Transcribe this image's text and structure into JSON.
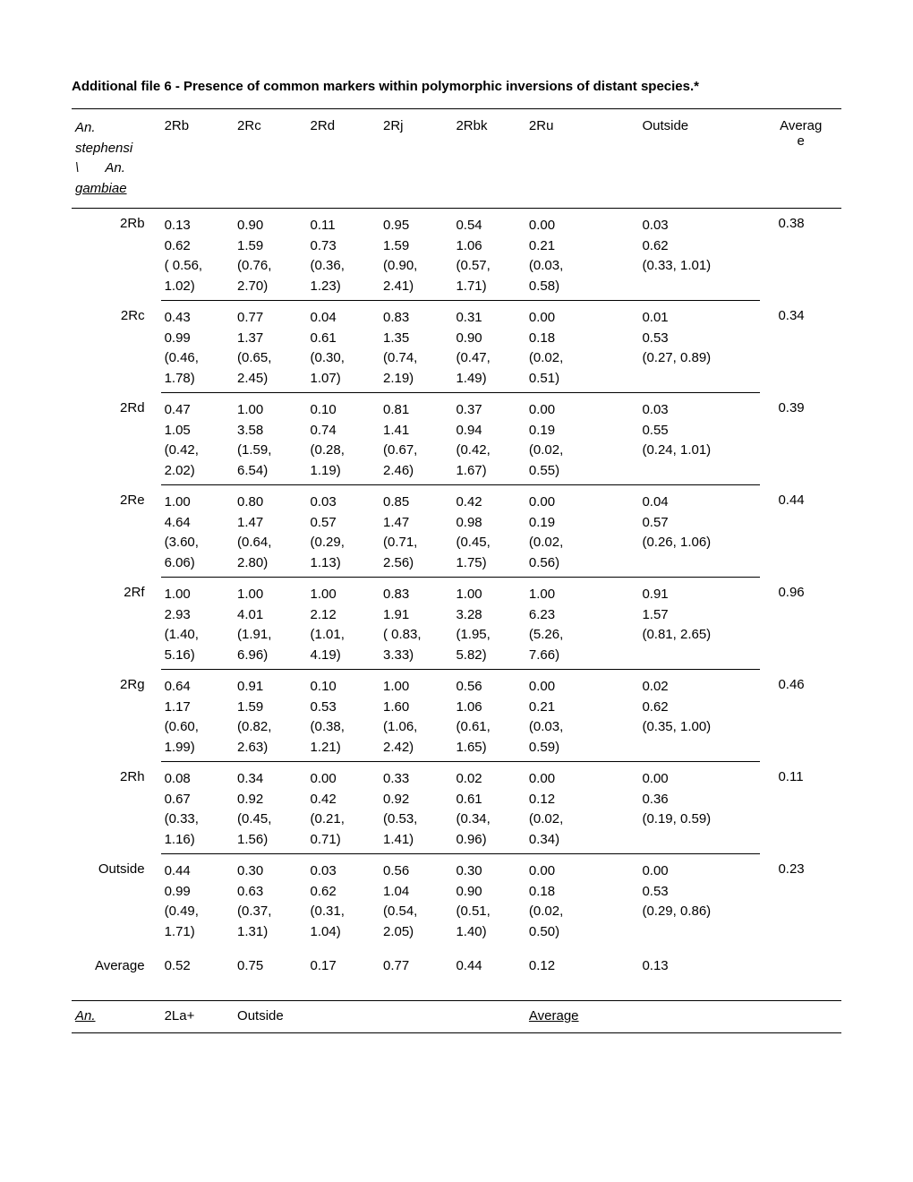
{
  "title": "Additional file 6 - Presence of common markers within polymorphic inversions of distant species.*",
  "header": {
    "rowLabel": "An. stephensi \\        An. gambiae",
    "cols": [
      "2Rb",
      "2Rc",
      "2Rd",
      "2Rj",
      "2Rbk",
      "2Ru",
      "Outside",
      "Averag\ne"
    ]
  },
  "rows": [
    {
      "label": "2Rb",
      "cells": [
        "0.13\n0.62\n( 0.56,\n1.02)",
        "0.90\n1.59\n(0.76,\n2.70)",
        "0.11\n0.73\n(0.36,\n1.23)",
        "0.95\n1.59\n(0.90,\n2.41)",
        "0.54\n1.06\n(0.57,\n1.71)",
        "0.00\n0.21\n(0.03,\n0.58)",
        "0.03\n0.62\n(0.33,  1.01)"
      ],
      "avg": "0.38"
    },
    {
      "label": "2Rc",
      "cells": [
        "0.43\n0.99\n(0.46,\n1.78)",
        "0.77\n1.37\n(0.65,\n2.45)",
        "0.04\n0.61\n(0.30,\n1.07)",
        "0.83\n1.35\n(0.74,\n2.19)",
        "0.31\n0.90\n(0.47,\n1.49)",
        "0.00\n0.18\n(0.02,\n0.51)",
        "0.01\n0.53\n(0.27,  0.89)"
      ],
      "avg": "0.34"
    },
    {
      "label": "2Rd",
      "cells": [
        "0.47\n1.05\n(0.42,\n2.02)",
        "1.00\n3.58\n(1.59,\n6.54)",
        "0.10\n0.74\n(0.28,\n1.19)",
        "0.81\n1.41\n(0.67,\n2.46)",
        "0.37\n0.94\n(0.42,\n1.67)",
        "0.00\n0.19\n(0.02,\n0.55)",
        "0.03\n0.55\n(0.24,  1.01)"
      ],
      "avg": "0.39"
    },
    {
      "label": "2Re",
      "cells": [
        "1.00\n4.64\n(3.60,\n6.06)",
        "0.80\n1.47\n(0.64,\n2.80)",
        "0.03\n0.57\n(0.29,\n1.13)",
        "0.85\n1.47\n(0.71,\n2.56)",
        "0.42\n0.98\n(0.45,\n1.75)",
        "0.00\n0.19\n(0.02,\n0.56)",
        "0.04\n0.57\n(0.26,  1.06)"
      ],
      "avg": "0.44"
    },
    {
      "label": "2Rf",
      "cells": [
        "1.00\n2.93\n(1.40,\n5.16)",
        "1.00\n4.01\n(1.91,\n6.96)",
        "1.00\n2.12\n(1.01,\n4.19)",
        "0.83\n1.91\n( 0.83,\n3.33)",
        "1.00\n3.28\n(1.95,\n5.82)",
        "1.00\n6.23\n(5.26,\n7.66)",
        "0.91\n1.57\n(0.81,  2.65)"
      ],
      "avg": "0.96"
    },
    {
      "label": "2Rg",
      "cells": [
        "0.64\n1.17\n(0.60,\n1.99)",
        "0.91\n1.59\n(0.82,\n2.63)",
        "0.10\n0.53\n(0.38,\n1.21)",
        "1.00\n1.60\n(1.06,\n2.42)",
        "0.56\n1.06\n(0.61,\n1.65)",
        "0.00\n0.21\n(0.03,\n0.59)",
        "0.02\n0.62\n(0.35,  1.00)"
      ],
      "avg": "0.46"
    },
    {
      "label": "2Rh",
      "cells": [
        "0.08\n0.67\n(0.33,\n1.16)",
        "0.34\n0.92\n(0.45,\n1.56)",
        "0.00\n0.42\n(0.21,\n0.71)",
        "0.33\n0.92\n(0.53,\n1.41)",
        "0.02\n0.61\n(0.34,\n0.96)",
        "0.00\n0.12\n(0.02,\n0.34)",
        "0.00\n0.36\n(0.19,  0.59)"
      ],
      "avg": "0.11"
    },
    {
      "label": "Outside",
      "cells": [
        "0.44\n0.99\n(0.49,\n1.71)",
        "0.30\n0.63\n(0.37,\n1.31)",
        "0.03\n0.62\n(0.31,\n1.04)",
        "0.56\n1.04\n(0.54,\n2.05)",
        "0.30\n0.90\n(0.51,\n1.40)",
        "0.00\n0.18\n(0.02,\n0.50)",
        "0.00\n0.53\n(0.29,  0.86)"
      ],
      "avg": "0.23",
      "noBorder": true
    }
  ],
  "averageRow": {
    "label": "Average",
    "cells": [
      "0.52",
      "0.75",
      "0.17",
      "0.77",
      "0.44",
      "0.12",
      "0.13",
      ""
    ]
  },
  "secondHeader": {
    "label": "An.",
    "c1": "2La+",
    "c2": "Outside",
    "c3": "Average"
  }
}
